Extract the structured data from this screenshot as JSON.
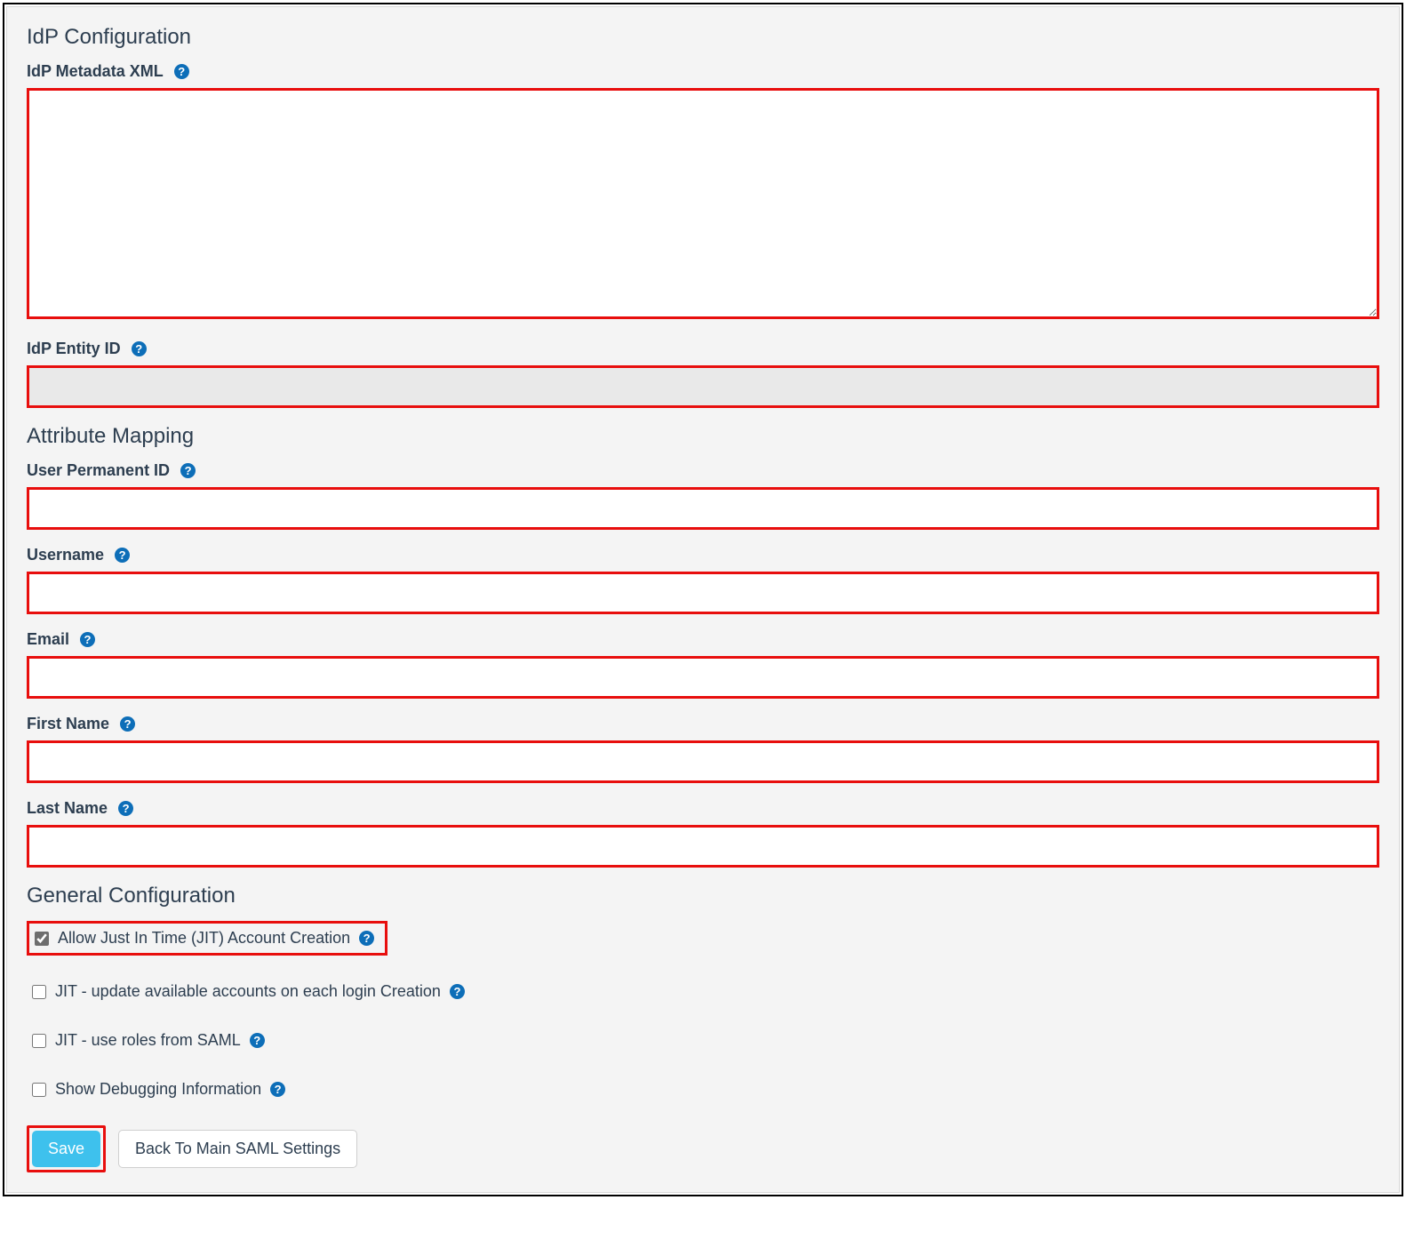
{
  "colors": {
    "highlight_border": "#e80e0d",
    "panel_bg": "#f4f4f4",
    "panel_border": "#d9d9d9",
    "text_primary": "#2d3e50",
    "help_icon_bg": "#0d6eb8",
    "btn_primary_bg": "#3ec1ed",
    "btn_primary_text": "#ffffff",
    "btn_secondary_bg": "#ffffff",
    "btn_secondary_border": "#cfcfcf",
    "disabled_input_bg": "#e9e9e9"
  },
  "sections": {
    "idp": {
      "title": "IdP Configuration",
      "metadata_xml": {
        "label": "IdP Metadata XML",
        "value": ""
      },
      "entity_id": {
        "label": "IdP Entity ID",
        "value": "",
        "disabled": true
      }
    },
    "attr": {
      "title": "Attribute Mapping",
      "user_permanent_id": {
        "label": "User Permanent ID",
        "value": ""
      },
      "username": {
        "label": "Username",
        "value": ""
      },
      "email": {
        "label": "Email",
        "value": ""
      },
      "first_name": {
        "label": "First Name",
        "value": ""
      },
      "last_name": {
        "label": "Last Name",
        "value": ""
      }
    },
    "general": {
      "title": "General Configuration",
      "jit_create": {
        "label": "Allow Just In Time (JIT) Account Creation",
        "checked": true,
        "highlighted": true
      },
      "jit_update": {
        "label": "JIT - update available accounts on each login Creation",
        "checked": false
      },
      "jit_roles": {
        "label": "JIT - use roles from SAML",
        "checked": false
      },
      "show_debug": {
        "label": "Show Debugging Information",
        "checked": false
      }
    }
  },
  "buttons": {
    "save": "Save",
    "back": "Back To Main SAML Settings"
  },
  "help_icon_glyph": "?"
}
